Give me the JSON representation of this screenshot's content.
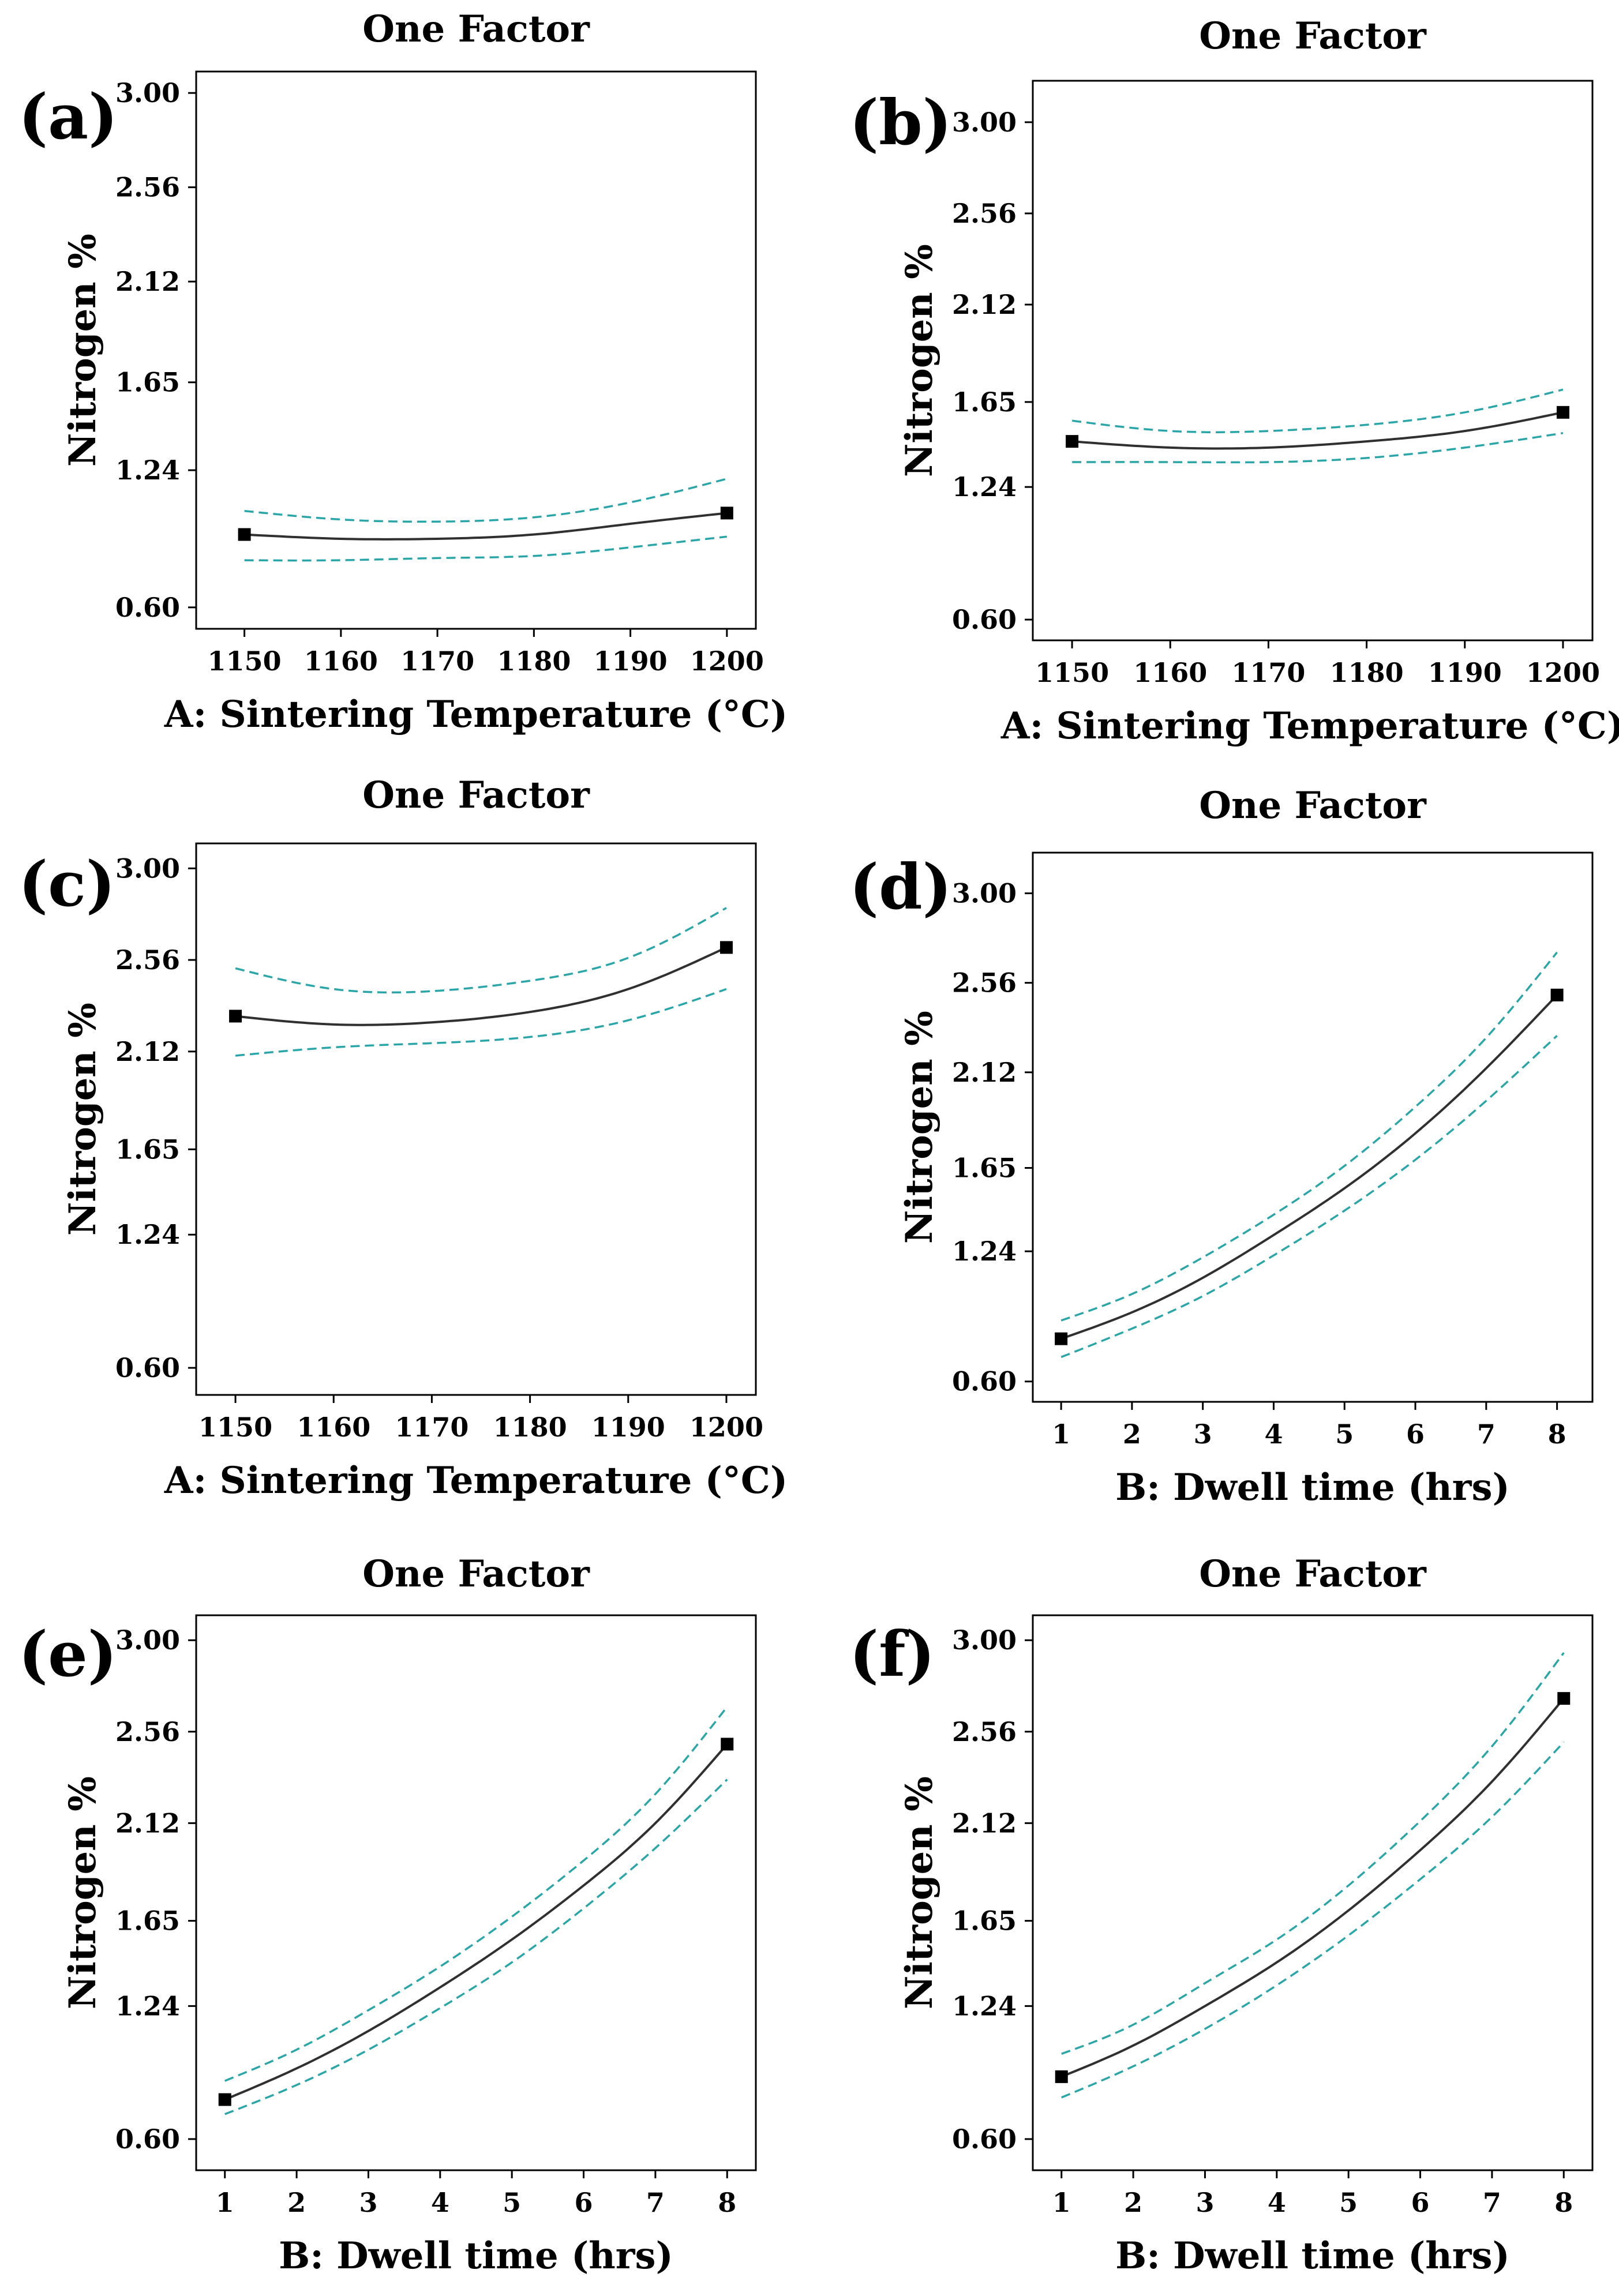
{
  "figure": {
    "ci_color": "#2aa6a8",
    "line_color": "#303030"
  },
  "chart_data": [
    {
      "id": "a",
      "panel_label": "(a)",
      "type": "line",
      "title": "One Factor",
      "xlabel": "A: Sintering Temperature (°C)",
      "ylabel": "Nitrogen %",
      "x_ticks": [
        "1150",
        "1160",
        "1170",
        "1180",
        "1190",
        "1200"
      ],
      "y_ticks": [
        "3.00",
        "2.56",
        "2.12",
        "1.65",
        "1.24",
        "0.60"
      ],
      "x_tick_values": [
        1150,
        1160,
        1170,
        1180,
        1190,
        1200
      ],
      "y_tick_values": [
        3.0,
        2.56,
        2.12,
        1.65,
        1.24,
        0.6
      ],
      "xlim": [
        1145,
        1203
      ],
      "ylim": [
        0.5,
        3.1
      ],
      "x": [
        1150,
        1160,
        1170,
        1180,
        1190,
        1200
      ],
      "series": [
        {
          "name": "Prediction",
          "values": [
            0.94,
            0.92,
            0.92,
            0.94,
            0.99,
            1.04
          ]
        },
        {
          "name": "Upper 95% CI",
          "values": [
            1.05,
            1.01,
            1.0,
            1.02,
            1.09,
            1.2
          ]
        },
        {
          "name": "Lower 95% CI",
          "values": [
            0.82,
            0.82,
            0.83,
            0.84,
            0.88,
            0.93
          ]
        }
      ],
      "points": [
        {
          "x": 1150,
          "y": 0.94
        },
        {
          "x": 1200,
          "y": 1.04
        }
      ]
    },
    {
      "id": "b",
      "panel_label": "(b)",
      "type": "line",
      "title": "One Factor",
      "xlabel": "A: Sintering Temperature (°C)",
      "ylabel": "Nitrogen %",
      "x_ticks": [
        "1150",
        "1160",
        "1170",
        "1180",
        "1190",
        "1200"
      ],
      "y_ticks": [
        "3.00",
        "2.56",
        "2.12",
        "1.65",
        "1.24",
        "0.60"
      ],
      "x_tick_values": [
        1150,
        1160,
        1170,
        1180,
        1190,
        1200
      ],
      "y_tick_values": [
        3.0,
        2.56,
        2.12,
        1.65,
        1.24,
        0.6
      ],
      "xlim": [
        1146,
        1203
      ],
      "ylim": [
        0.5,
        3.2
      ],
      "x": [
        1150,
        1160,
        1170,
        1180,
        1190,
        1200
      ],
      "series": [
        {
          "name": "Prediction",
          "values": [
            1.46,
            1.43,
            1.43,
            1.46,
            1.51,
            1.6
          ]
        },
        {
          "name": "Upper 95% CI",
          "values": [
            1.56,
            1.51,
            1.51,
            1.54,
            1.6,
            1.71
          ]
        },
        {
          "name": "Lower 95% CI",
          "values": [
            1.36,
            1.36,
            1.36,
            1.38,
            1.43,
            1.5
          ]
        }
      ],
      "points": [
        {
          "x": 1150,
          "y": 1.46
        },
        {
          "x": 1200,
          "y": 1.6
        }
      ]
    },
    {
      "id": "c",
      "panel_label": "(c)",
      "type": "line",
      "title": "One Factor",
      "xlabel": "A: Sintering Temperature (°C)",
      "ylabel": "Nitrogen %",
      "x_ticks": [
        "1150",
        "1160",
        "1170",
        "1180",
        "1190",
        "1200"
      ],
      "y_ticks": [
        "3.00",
        "2.56",
        "2.12",
        "1.65",
        "1.24",
        "0.60"
      ],
      "x_tick_values": [
        1150,
        1160,
        1170,
        1180,
        1190,
        1200
      ],
      "y_tick_values": [
        3.0,
        2.56,
        2.12,
        1.65,
        1.24,
        0.6
      ],
      "xlim": [
        1146,
        1203
      ],
      "ylim": [
        0.47,
        3.12
      ],
      "x": [
        1150,
        1160,
        1170,
        1180,
        1190,
        1200
      ],
      "series": [
        {
          "name": "Prediction",
          "values": [
            2.29,
            2.25,
            2.26,
            2.31,
            2.42,
            2.62
          ]
        },
        {
          "name": "Upper 95% CI",
          "values": [
            2.52,
            2.42,
            2.41,
            2.46,
            2.57,
            2.81
          ]
        },
        {
          "name": "Lower 95% CI",
          "values": [
            2.1,
            2.14,
            2.16,
            2.19,
            2.27,
            2.42
          ]
        }
      ],
      "points": [
        {
          "x": 1150,
          "y": 2.29
        },
        {
          "x": 1200,
          "y": 2.62
        }
      ]
    },
    {
      "id": "d",
      "panel_label": "(d)",
      "type": "line",
      "title": "One Factor",
      "xlabel": "B: Dwell time (hrs)",
      "ylabel": "Nitrogen %",
      "x_ticks": [
        "1",
        "2",
        "3",
        "4",
        "5",
        "6",
        "7",
        "8"
      ],
      "y_ticks": [
        "3.00",
        "2.56",
        "2.12",
        "1.65",
        "1.24",
        "0.60"
      ],
      "x_tick_values": [
        1,
        2,
        3,
        4,
        5,
        6,
        7,
        8
      ],
      "y_tick_values": [
        3.0,
        2.56,
        2.12,
        1.65,
        1.24,
        0.6
      ],
      "xlim": [
        0.6,
        8.5
      ],
      "ylim": [
        0.5,
        3.2
      ],
      "x": [
        1,
        2,
        3,
        4,
        5,
        6,
        7,
        8
      ],
      "series": [
        {
          "name": "Prediction",
          "values": [
            0.81,
            0.94,
            1.11,
            1.32,
            1.55,
            1.82,
            2.14,
            2.5
          ]
        },
        {
          "name": "Upper 95% CI",
          "values": [
            0.9,
            1.03,
            1.21,
            1.42,
            1.66,
            1.95,
            2.29,
            2.71
          ]
        },
        {
          "name": "Lower 95% CI",
          "values": [
            0.72,
            0.86,
            1.02,
            1.22,
            1.44,
            1.69,
            1.98,
            2.3
          ]
        }
      ],
      "points": [
        {
          "x": 1,
          "y": 0.81
        },
        {
          "x": 8,
          "y": 2.5
        }
      ]
    },
    {
      "id": "e",
      "panel_label": "(e)",
      "type": "line",
      "title": "One Factor",
      "xlabel": "B: Dwell time (hrs)",
      "ylabel": "Nitrogen %",
      "x_ticks": [
        "1",
        "2",
        "3",
        "4",
        "5",
        "6",
        "7",
        "8"
      ],
      "y_ticks": [
        "3.00",
        "2.56",
        "2.12",
        "1.65",
        "1.24",
        "0.60"
      ],
      "x_tick_values": [
        1,
        2,
        3,
        4,
        5,
        6,
        7,
        8
      ],
      "y_tick_values": [
        3.0,
        2.56,
        2.12,
        1.65,
        1.24,
        0.6
      ],
      "xlim": [
        0.6,
        8.4
      ],
      "ylim": [
        0.45,
        3.12
      ],
      "x": [
        1,
        2,
        3,
        4,
        5,
        6,
        7,
        8
      ],
      "series": [
        {
          "name": "Prediction",
          "values": [
            0.79,
            0.94,
            1.12,
            1.33,
            1.56,
            1.82,
            2.12,
            2.5
          ]
        },
        {
          "name": "Upper 95% CI",
          "values": [
            0.88,
            1.03,
            1.22,
            1.43,
            1.67,
            1.94,
            2.26,
            2.68
          ]
        },
        {
          "name": "Lower 95% CI",
          "values": [
            0.72,
            0.86,
            1.03,
            1.23,
            1.45,
            1.71,
            2.0,
            2.33
          ]
        }
      ],
      "points": [
        {
          "x": 1,
          "y": 0.79
        },
        {
          "x": 8,
          "y": 2.5
        }
      ]
    },
    {
      "id": "f",
      "panel_label": "(f)",
      "type": "line",
      "title": "One Factor",
      "xlabel": "B: Dwell time (hrs)",
      "ylabel": "Nitrogen %",
      "x_ticks": [
        "1",
        "2",
        "3",
        "4",
        "5",
        "6",
        "7",
        "8"
      ],
      "y_ticks": [
        "3.00",
        "2.56",
        "2.12",
        "1.65",
        "1.24",
        "0.60"
      ],
      "x_tick_values": [
        1,
        2,
        3,
        4,
        5,
        6,
        7,
        8
      ],
      "y_tick_values": [
        3.0,
        2.56,
        2.12,
        1.65,
        1.24,
        0.6
      ],
      "xlim": [
        0.6,
        8.4
      ],
      "ylim": [
        0.45,
        3.12
      ],
      "x": [
        1,
        2,
        3,
        4,
        5,
        6,
        7,
        8
      ],
      "series": [
        {
          "name": "Prediction",
          "values": [
            0.9,
            1.05,
            1.24,
            1.45,
            1.7,
            1.99,
            2.32,
            2.72
          ]
        },
        {
          "name": "Upper 95% CI",
          "values": [
            1.01,
            1.15,
            1.35,
            1.56,
            1.82,
            2.13,
            2.49,
            2.94
          ]
        },
        {
          "name": "Lower 95% CI",
          "values": [
            0.8,
            0.95,
            1.13,
            1.34,
            1.58,
            1.85,
            2.15,
            2.51
          ]
        }
      ],
      "points": [
        {
          "x": 1,
          "y": 0.9
        },
        {
          "x": 8,
          "y": 2.72
        }
      ]
    }
  ]
}
